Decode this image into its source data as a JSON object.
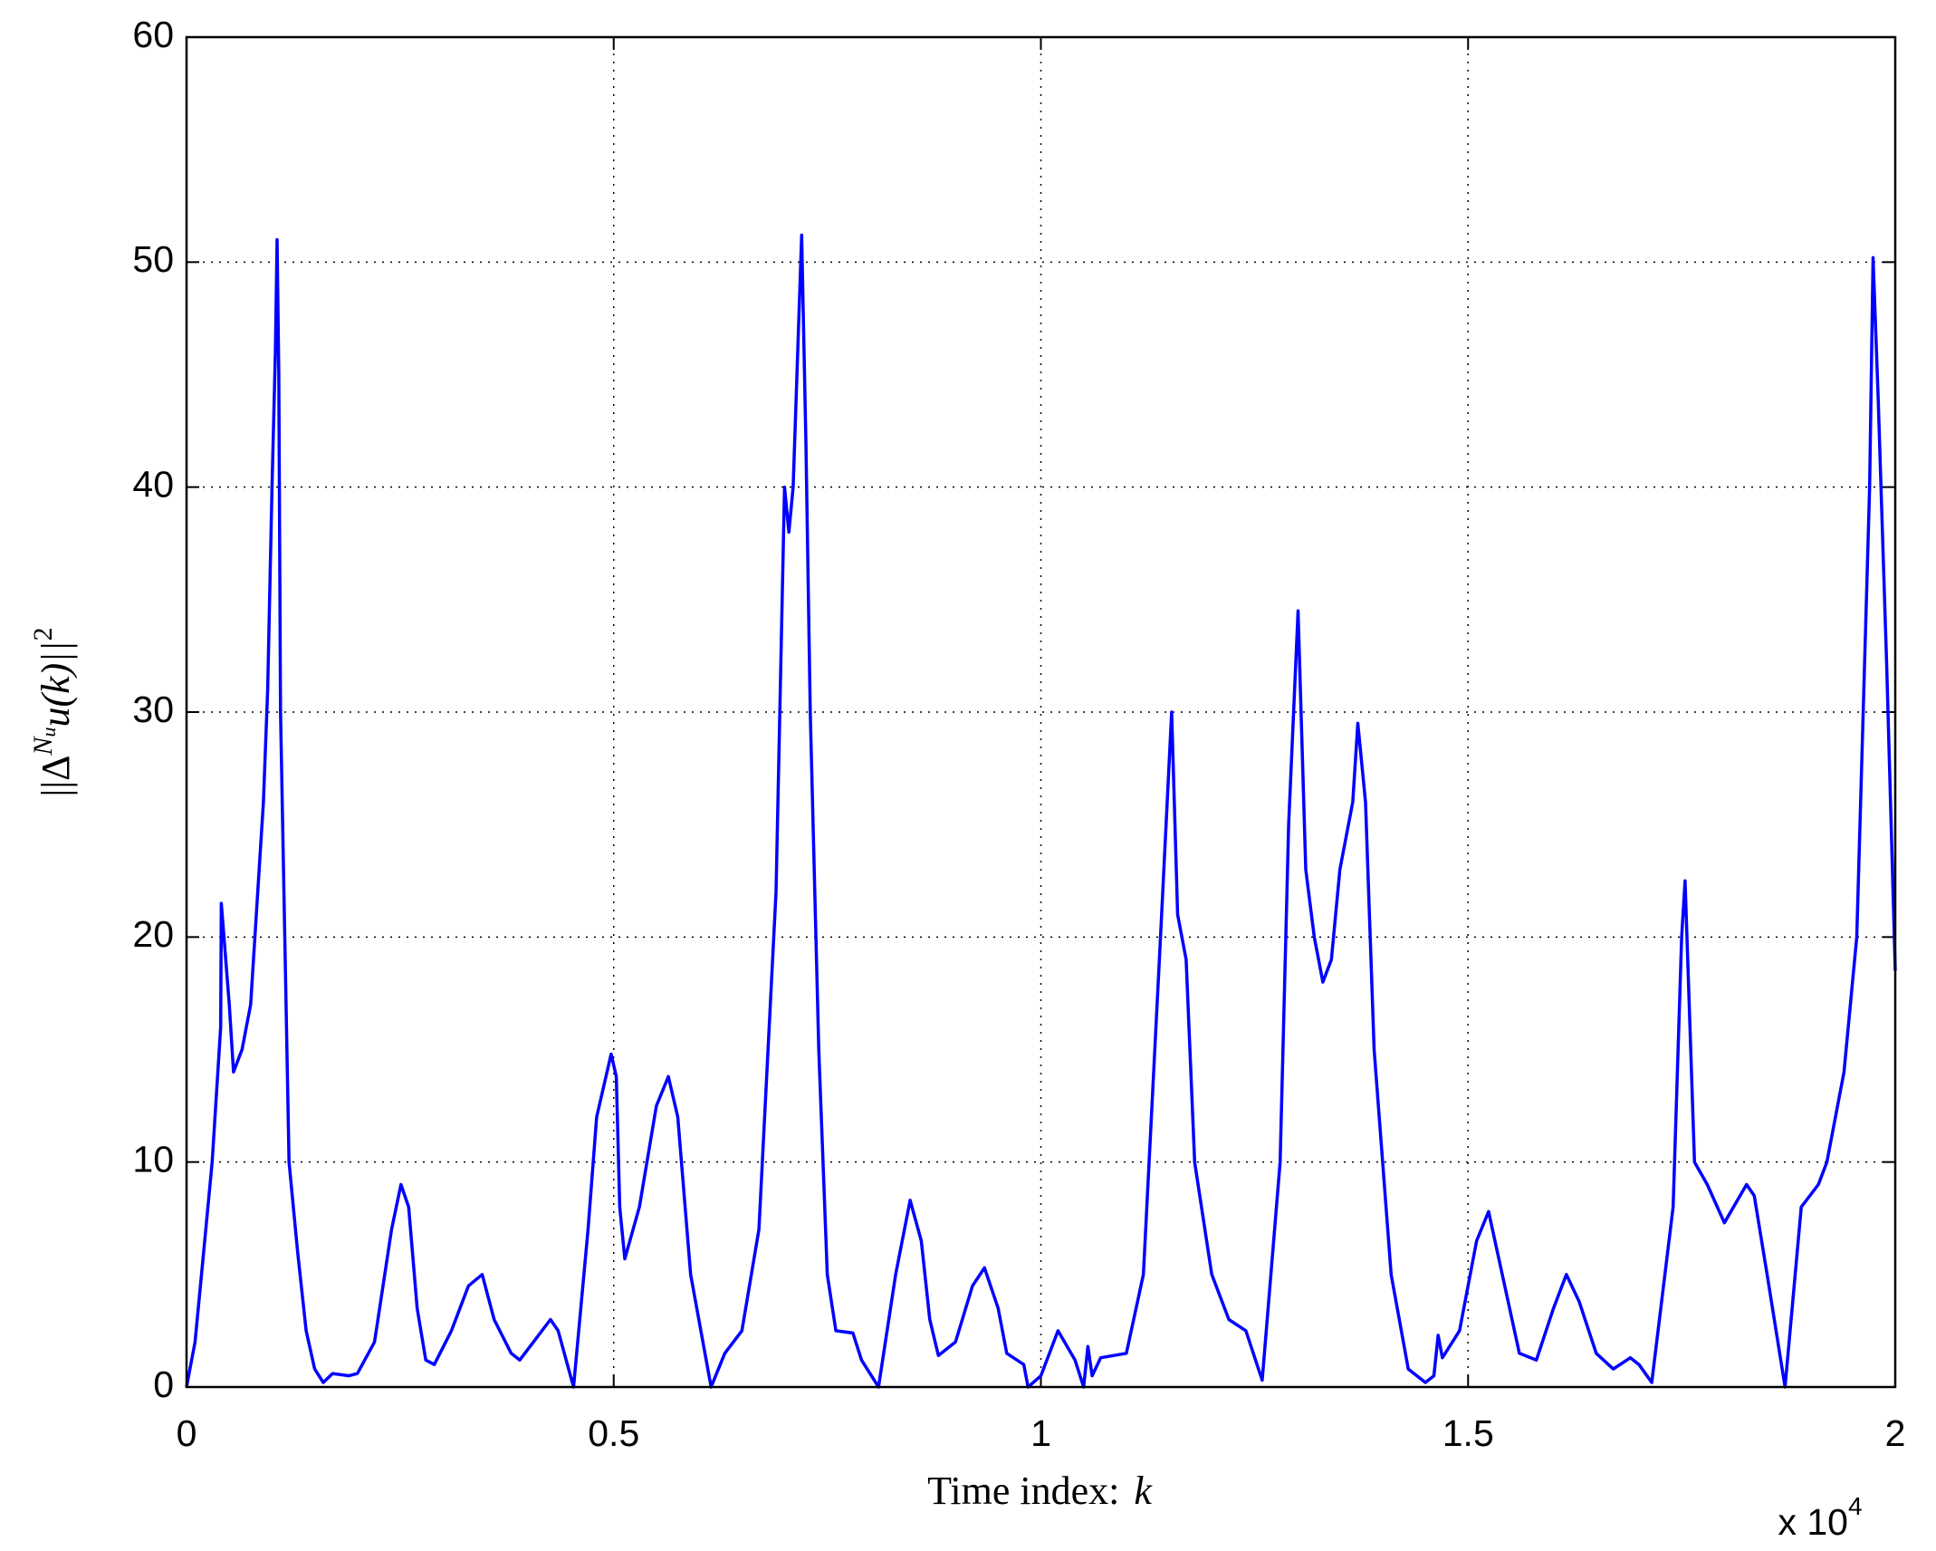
{
  "chart_data": {
    "type": "line",
    "xlabel": {
      "text": "Time index:",
      "var": "k"
    },
    "ylabel": {
      "open": "||Δ",
      "sup": "N",
      "supsub": "u",
      "body": "u(k)||",
      "power": "2"
    },
    "x_multiplier": {
      "text": "x 10",
      "exponent": "4"
    },
    "xlim": [
      0,
      2
    ],
    "xticks": [
      0,
      0.5,
      1,
      1.5,
      2
    ],
    "ylim": [
      0,
      60
    ],
    "yticks": [
      0,
      10,
      20,
      30,
      40,
      50,
      60
    ],
    "grid": true,
    "series": [
      {
        "color": "#0000ff",
        "x": [
          0,
          0.01,
          0.02,
          0.03,
          0.04,
          0.0407,
          0.05,
          0.055,
          0.065,
          0.075,
          0.08,
          0.09,
          0.095,
          0.1,
          0.104,
          0.106,
          0.108,
          0.11,
          0.12,
          0.13,
          0.14,
          0.15,
          0.16,
          0.171,
          0.19,
          0.2,
          0.22,
          0.24,
          0.251,
          0.26,
          0.27,
          0.28,
          0.29,
          0.31,
          0.33,
          0.346,
          0.36,
          0.38,
          0.39,
          0.41,
          0.426,
          0.435,
          0.453,
          0.47,
          0.48,
          0.497,
          0.503,
          0.507,
          0.513,
          0.53,
          0.55,
          0.564,
          0.575,
          0.59,
          0.614,
          0.63,
          0.65,
          0.67,
          0.69,
          0.7,
          0.705,
          0.71,
          0.72,
          0.725,
          0.73,
          0.74,
          0.75,
          0.76,
          0.78,
          0.79,
          0.81,
          0.83,
          0.847,
          0.86,
          0.87,
          0.88,
          0.9,
          0.92,
          0.934,
          0.95,
          0.96,
          0.98,
          0.985,
          1.0,
          1.02,
          1.04,
          1.05,
          1.055,
          1.06,
          1.07,
          1.1,
          1.12,
          1.14,
          1.153,
          1.16,
          1.17,
          1.18,
          1.2,
          1.22,
          1.24,
          1.259,
          1.28,
          1.29,
          1.301,
          1.31,
          1.32,
          1.33,
          1.34,
          1.35,
          1.365,
          1.371,
          1.38,
          1.39,
          1.4,
          1.41,
          1.43,
          1.45,
          1.46,
          1.465,
          1.47,
          1.49,
          1.51,
          1.524,
          1.54,
          1.56,
          1.58,
          1.6,
          1.615,
          1.63,
          1.65,
          1.67,
          1.69,
          1.7,
          1.715,
          1.74,
          1.75,
          1.754,
          1.765,
          1.78,
          1.8,
          1.826,
          1.835,
          1.85,
          1.871,
          1.89,
          1.91,
          1.92,
          1.94,
          1.955,
          1.97,
          1.974,
          1.98,
          1.99,
          2.0
        ],
        "values": [
          0,
          2,
          6,
          10,
          16,
          21.5,
          17,
          14,
          15,
          17,
          20,
          26,
          31,
          40,
          46,
          51,
          45,
          30,
          10,
          6,
          2.5,
          0.8,
          0.2,
          0.6,
          0.5,
          0.6,
          2,
          7,
          9,
          8,
          3.5,
          1.2,
          1,
          2.5,
          4.5,
          5,
          3,
          1.5,
          1.2,
          2.2,
          3,
          2.5,
          0,
          7,
          12,
          14.8,
          13.8,
          8,
          5.7,
          8,
          12.5,
          13.8,
          12,
          5,
          0,
          1.5,
          2.5,
          7,
          22,
          40,
          38,
          40,
          51.2,
          42,
          30,
          15,
          5,
          2.5,
          2.4,
          1.2,
          0,
          5,
          8.3,
          6.5,
          3,
          1.4,
          2,
          4.5,
          5.3,
          3.5,
          1.5,
          1,
          0,
          0.5,
          2.5,
          1.2,
          0,
          1.8,
          0.5,
          1.3,
          1.5,
          5,
          20,
          30,
          21,
          19,
          10,
          5,
          3,
          2.5,
          0.3,
          10,
          25,
          34.5,
          23,
          20,
          18,
          19,
          23,
          26,
          29.5,
          26,
          15,
          10,
          5,
          0.8,
          0.2,
          0.5,
          2.3,
          1.3,
          2.5,
          6.5,
          7.8,
          5,
          1.5,
          1.2,
          3.5,
          5,
          3.8,
          1.5,
          0.8,
          1.3,
          1,
          0.2,
          8,
          20,
          22.5,
          10,
          9,
          7.3,
          9,
          8.5,
          5,
          0,
          8,
          9,
          10,
          14,
          20,
          40,
          50.2,
          44,
          32,
          18.5
        ]
      }
    ]
  }
}
